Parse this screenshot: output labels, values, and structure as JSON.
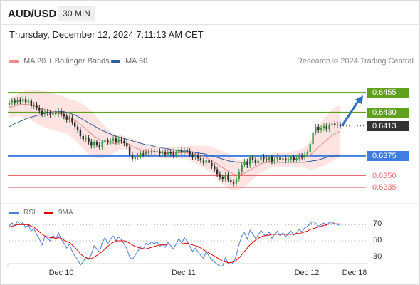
{
  "header": {
    "symbol": "AUD/USD",
    "timeframe": "30 MIN",
    "datetime": "Thursday, December 12, 2024 7:11:13 AM CET",
    "copyright": "Research © 2024 Trading Central"
  },
  "legend": {
    "ma20_label": "MA 20 + Bollinger Bands",
    "ma20_color": "#f08a84",
    "ma50_label": "MA 50",
    "ma50_color": "#2f5f9e"
  },
  "rsi_legend": {
    "rsi_label": "RSI",
    "rsi_color": "#4f7fd6",
    "ma_label": "9MA",
    "ma_color": "#e00000"
  },
  "chart_data": [
    {
      "type": "candlestick",
      "title": "AUD/USD 30 MIN",
      "ylim": [
        0.6327,
        0.6466
      ],
      "x_ticks": [
        "Dec 10",
        "Dec 11",
        "Dec 12",
        "Dec 18"
      ],
      "levels": [
        {
          "value": "0.6455",
          "kind": "resistance",
          "color": "#5fa01d"
        },
        {
          "value": "0.6430",
          "kind": "resistance",
          "color": "#5fa01d"
        },
        {
          "value": "0.6413",
          "kind": "last-price",
          "color": "#333333"
        },
        {
          "value": "0.6375",
          "kind": "pivot",
          "color": "#3f7ee0"
        },
        {
          "value": "0.6350",
          "kind": "support",
          "color": "#ea6b6b"
        },
        {
          "value": "0.6335",
          "kind": "support",
          "color": "#ea6b6b"
        }
      ],
      "closes": [
        0.6442,
        0.6445,
        0.6443,
        0.6446,
        0.6444,
        0.6447,
        0.6443,
        0.6445,
        0.6438,
        0.644,
        0.6436,
        0.6432,
        0.6428,
        0.6431,
        0.6429,
        0.6427,
        0.643,
        0.6428,
        0.6432,
        0.6428,
        0.6425,
        0.6421,
        0.6423,
        0.6418,
        0.6412,
        0.6408,
        0.64,
        0.6396,
        0.6398,
        0.6393,
        0.6388,
        0.6392,
        0.6389,
        0.6386,
        0.6392,
        0.6395,
        0.6392,
        0.6394,
        0.6397,
        0.6393,
        0.6396,
        0.6394,
        0.6391,
        0.6387,
        0.6376,
        0.6371,
        0.6373,
        0.6375,
        0.6378,
        0.6377,
        0.638,
        0.6379,
        0.6381,
        0.638,
        0.6381,
        0.6378,
        0.6379,
        0.6377,
        0.638,
        0.6378,
        0.6376,
        0.6379,
        0.6383,
        0.638,
        0.6383,
        0.6381,
        0.6377,
        0.6373,
        0.6375,
        0.6372,
        0.6369,
        0.6366,
        0.637,
        0.6366,
        0.6362,
        0.6358,
        0.6352,
        0.6348,
        0.6346,
        0.6351,
        0.6345,
        0.6342,
        0.634,
        0.6346,
        0.6355,
        0.6364,
        0.6368,
        0.6363,
        0.6373,
        0.637,
        0.6366,
        0.6369,
        0.6374,
        0.6371,
        0.637,
        0.6373,
        0.6368,
        0.6371,
        0.6374,
        0.637,
        0.6372,
        0.6369,
        0.6371,
        0.6373,
        0.637,
        0.6372,
        0.6375,
        0.6373,
        0.6377,
        0.638,
        0.639,
        0.6405,
        0.6412,
        0.6408,
        0.641,
        0.6413,
        0.6409,
        0.6414,
        0.6416,
        0.6414,
        0.6415,
        0.6413
      ],
      "ma20": [
        0.6436,
        0.6437,
        0.6438,
        0.6439,
        0.644,
        0.644,
        0.644,
        0.644,
        0.6439,
        0.6438,
        0.6437,
        0.6436,
        0.6435,
        0.6434,
        0.6433,
        0.6432,
        0.6431,
        0.643,
        0.6429,
        0.6428,
        0.6427,
        0.6426,
        0.6424,
        0.6422,
        0.642,
        0.6418,
        0.6415,
        0.6412,
        0.6409,
        0.6406,
        0.6403,
        0.64,
        0.6398,
        0.6396,
        0.6394,
        0.6393,
        0.6392,
        0.6391,
        0.6391,
        0.6391,
        0.6392,
        0.6392,
        0.6392,
        0.6391,
        0.6389,
        0.6387,
        0.6385,
        0.6384,
        0.6383,
        0.6382,
        0.6381,
        0.638,
        0.638,
        0.638,
        0.638,
        0.6379,
        0.6379,
        0.6379,
        0.6379,
        0.6379,
        0.6379,
        0.6379,
        0.6379,
        0.6379,
        0.6379,
        0.6379,
        0.6379,
        0.6378,
        0.6377,
        0.6376,
        0.6375,
        0.6374,
        0.6373,
        0.6371,
        0.6369,
        0.6367,
        0.6365,
        0.6362,
        0.636,
        0.6358,
        0.6356,
        0.6354,
        0.6352,
        0.6351,
        0.6351,
        0.6352,
        0.6353,
        0.6355,
        0.6357,
        0.6359,
        0.6361,
        0.6363,
        0.6365,
        0.6366,
        0.6367,
        0.6368,
        0.6369,
        0.637,
        0.637,
        0.637,
        0.637,
        0.637,
        0.637,
        0.6371,
        0.6371,
        0.6371,
        0.6372,
        0.6372,
        0.6373,
        0.6374,
        0.6376,
        0.6379,
        0.6383,
        0.6386,
        0.6389,
        0.6392,
        0.6395,
        0.6398,
        0.6401,
        0.6403,
        0.6405,
        0.6406
      ],
      "ma50": [
        0.6412,
        0.6414,
        0.6416,
        0.6417,
        0.6419,
        0.642,
        0.6422,
        0.6423,
        0.6424,
        0.6425,
        0.6426,
        0.6427,
        0.6428,
        0.6429,
        0.643,
        0.643,
        0.6431,
        0.6431,
        0.6431,
        0.6431,
        0.6431,
        0.643,
        0.6429,
        0.6428,
        0.6427,
        0.6425,
        0.6423,
        0.6421,
        0.6419,
        0.6417,
        0.6415,
        0.6413,
        0.6411,
        0.6409,
        0.6407,
        0.6406,
        0.6404,
        0.6403,
        0.6401,
        0.64,
        0.6399,
        0.6398,
        0.6397,
        0.6396,
        0.6395,
        0.6394,
        0.6393,
        0.6392,
        0.6391,
        0.639,
        0.6389,
        0.6389,
        0.6388,
        0.6387,
        0.6386,
        0.6386,
        0.6385,
        0.6384,
        0.6384,
        0.6383,
        0.6383,
        0.6382,
        0.6382,
        0.6381,
        0.6381,
        0.6381,
        0.638,
        0.638,
        0.6379,
        0.6379,
        0.6378,
        0.6378,
        0.6377,
        0.6376,
        0.6375,
        0.6374,
        0.6373,
        0.6372,
        0.6371,
        0.637,
        0.6369,
        0.6368,
        0.6368,
        0.6367,
        0.6367,
        0.6367,
        0.6367,
        0.6367,
        0.6367,
        0.6367,
        0.6367,
        0.6367,
        0.6367,
        0.6367,
        0.6367,
        0.6367,
        0.6367,
        0.6367,
        0.6367,
        0.6367,
        0.6367,
        0.6367,
        0.6367,
        0.6367,
        0.6367,
        0.6367,
        0.6367,
        0.6367,
        0.6367,
        0.6368,
        0.6368,
        0.6369,
        0.6369,
        0.637,
        0.6371,
        0.6372,
        0.6373,
        0.6374,
        0.6374,
        0.6375,
        0.6375,
        0.6375
      ],
      "bollinger_band_width": [
        0.0012,
        0.0013,
        0.0013,
        0.0014,
        0.0015,
        0.0016,
        0.0017,
        0.0018,
        0.0019,
        0.002,
        0.0021,
        0.0022,
        0.0022,
        0.0023,
        0.0023,
        0.0023,
        0.0023,
        0.0023,
        0.0023,
        0.0023,
        0.0023,
        0.0023,
        0.0023,
        0.0024,
        0.0025,
        0.0026,
        0.0027,
        0.0028,
        0.0029,
        0.0029,
        0.0029,
        0.0028,
        0.0026,
        0.0024,
        0.0022,
        0.002,
        0.0017,
        0.0015,
        0.0013,
        0.0011,
        0.001,
        0.0009,
        0.0008,
        0.0008,
        0.0009,
        0.001,
        0.001,
        0.001,
        0.0009,
        0.0009,
        0.0008,
        0.0008,
        0.0007,
        0.0007,
        0.0007,
        0.0007,
        0.0007,
        0.0007,
        0.0007,
        0.0007,
        0.0007,
        0.0007,
        0.0007,
        0.0008,
        0.0008,
        0.0008,
        0.0009,
        0.001,
        0.0011,
        0.0012,
        0.0013,
        0.0014,
        0.0015,
        0.0016,
        0.0017,
        0.0018,
        0.0019,
        0.002,
        0.0021,
        0.0022,
        0.0022,
        0.0022,
        0.0021,
        0.002,
        0.0019,
        0.0018,
        0.0017,
        0.0016,
        0.0015,
        0.0014,
        0.0013,
        0.0012,
        0.0011,
        0.001,
        0.001,
        0.0009,
        0.0009,
        0.0009,
        0.0009,
        0.0009,
        0.0009,
        0.0009,
        0.0009,
        0.0009,
        0.001,
        0.001,
        0.0011,
        0.0012,
        0.0013,
        0.0015,
        0.0018,
        0.0021,
        0.0024,
        0.0026,
        0.0028,
        0.003,
        0.0031,
        0.0032,
        0.0033,
        0.0033,
        0.0033,
        0.0033
      ],
      "forecast_arrow_target": 0.6455
    },
    {
      "type": "line",
      "title": "RSI",
      "ylim": [
        20,
        80
      ],
      "y_ticks": [
        "70",
        "50",
        "30"
      ],
      "series": [
        {
          "name": "RSI",
          "values": [
            68,
            72,
            69,
            74,
            70,
            73,
            66,
            70,
            62,
            65,
            58,
            52,
            45,
            56,
            53,
            50,
            57,
            52,
            60,
            52,
            47,
            41,
            46,
            37,
            31,
            27,
            20,
            24,
            30,
            27,
            33,
            44,
            40,
            36,
            48,
            54,
            47,
            52,
            56,
            50,
            55,
            51,
            46,
            40,
            30,
            27,
            32,
            37,
            43,
            40,
            47,
            45,
            49,
            46,
            49,
            43,
            46,
            42,
            48,
            44,
            40,
            46,
            53,
            47,
            54,
            50,
            43,
            37,
            41,
            36,
            32,
            28,
            37,
            31,
            27,
            24,
            21,
            19,
            19,
            29,
            22,
            21,
            23,
            32,
            46,
            56,
            60,
            52,
            63,
            59,
            53,
            57,
            63,
            58,
            56,
            61,
            53,
            58,
            62,
            56,
            60,
            55,
            59,
            62,
            57,
            60,
            64,
            61,
            66,
            68,
            71,
            74,
            72,
            68,
            70,
            72,
            69,
            73,
            73,
            71,
            70,
            69
          ]
        },
        {
          "name": "9MA",
          "values": [
            67,
            68,
            69,
            70,
            70,
            70,
            70,
            70,
            68,
            67,
            64,
            61,
            58,
            56,
            55,
            54,
            54,
            53,
            54,
            53,
            51,
            49,
            48,
            45,
            42,
            38,
            34,
            31,
            29,
            28,
            28,
            30,
            32,
            34,
            37,
            40,
            43,
            46,
            48,
            50,
            50,
            50,
            50,
            49,
            47,
            45,
            43,
            42,
            41,
            40,
            40,
            41,
            42,
            43,
            44,
            45,
            45,
            45,
            46,
            46,
            46,
            46,
            46,
            46,
            47,
            47,
            46,
            45,
            44,
            43,
            41,
            39,
            37,
            35,
            33,
            31,
            29,
            27,
            25,
            24,
            23,
            23,
            24,
            26,
            29,
            33,
            37,
            41,
            45,
            48,
            51,
            53,
            55,
            56,
            57,
            57,
            58,
            58,
            58,
            58,
            58,
            58,
            58,
            58,
            58,
            59,
            59,
            60,
            61,
            62,
            64,
            65,
            66,
            67,
            68,
            69,
            70,
            71,
            71,
            71,
            71,
            71
          ]
        }
      ]
    }
  ]
}
